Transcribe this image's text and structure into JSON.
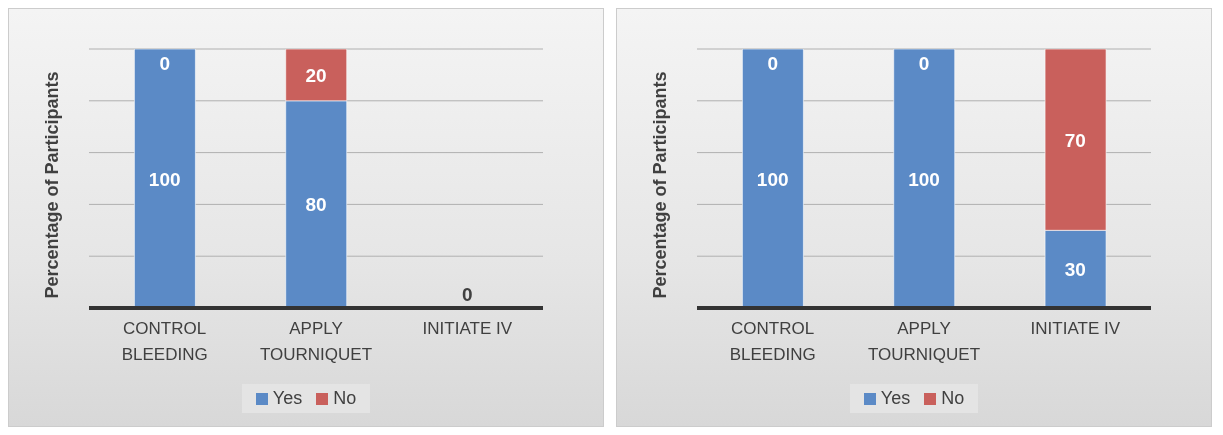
{
  "chart_data": [
    {
      "type": "bar",
      "stacked": true,
      "ylabel": "Percentage of Participants",
      "categories": [
        "CONTROL BLEEDING",
        "APPLY TOURNIQUET",
        "INITIATE IV"
      ],
      "series": [
        {
          "name": "Yes",
          "color": "#5b8ac6",
          "values": [
            100,
            80,
            0
          ],
          "value_labels": [
            "100",
            "80",
            "0"
          ]
        },
        {
          "name": "No",
          "color": "#c9605c",
          "values": [
            0,
            20,
            null
          ],
          "value_labels": [
            "0",
            "20",
            null
          ]
        }
      ],
      "ylim": [
        0,
        100
      ],
      "yticks": [
        {
          "value": 0,
          "label": null
        },
        {
          "value": 20,
          "label": null
        },
        {
          "value": 40,
          "label": null
        },
        {
          "value": 60,
          "label": null
        },
        {
          "value": 80,
          "label": null
        },
        {
          "value": 100,
          "label": null
        }
      ],
      "grid": "y",
      "legend": "bottom"
    },
    {
      "type": "bar",
      "stacked": true,
      "ylabel": "Percentage of Participants",
      "categories": [
        "CONTROL BLEEDING",
        "APPLY TOURNIQUET",
        "INITIATE IV"
      ],
      "series": [
        {
          "name": "Yes",
          "color": "#5b8ac6",
          "values": [
            100,
            100,
            30
          ],
          "value_labels": [
            "100",
            "100",
            "30"
          ]
        },
        {
          "name": "No",
          "color": "#c9605c",
          "values": [
            0,
            0,
            70
          ],
          "value_labels": [
            "0",
            "0",
            "70"
          ]
        }
      ],
      "ylim": [
        0,
        100
      ],
      "yticks": [
        {
          "value": 0,
          "label": null
        },
        {
          "value": 20,
          "label": null
        },
        {
          "value": 40,
          "label": null
        },
        {
          "value": 60,
          "label": null
        },
        {
          "value": 80,
          "label": null
        },
        {
          "value": 100,
          "label": null
        }
      ],
      "grid": "y",
      "legend": "bottom"
    }
  ]
}
